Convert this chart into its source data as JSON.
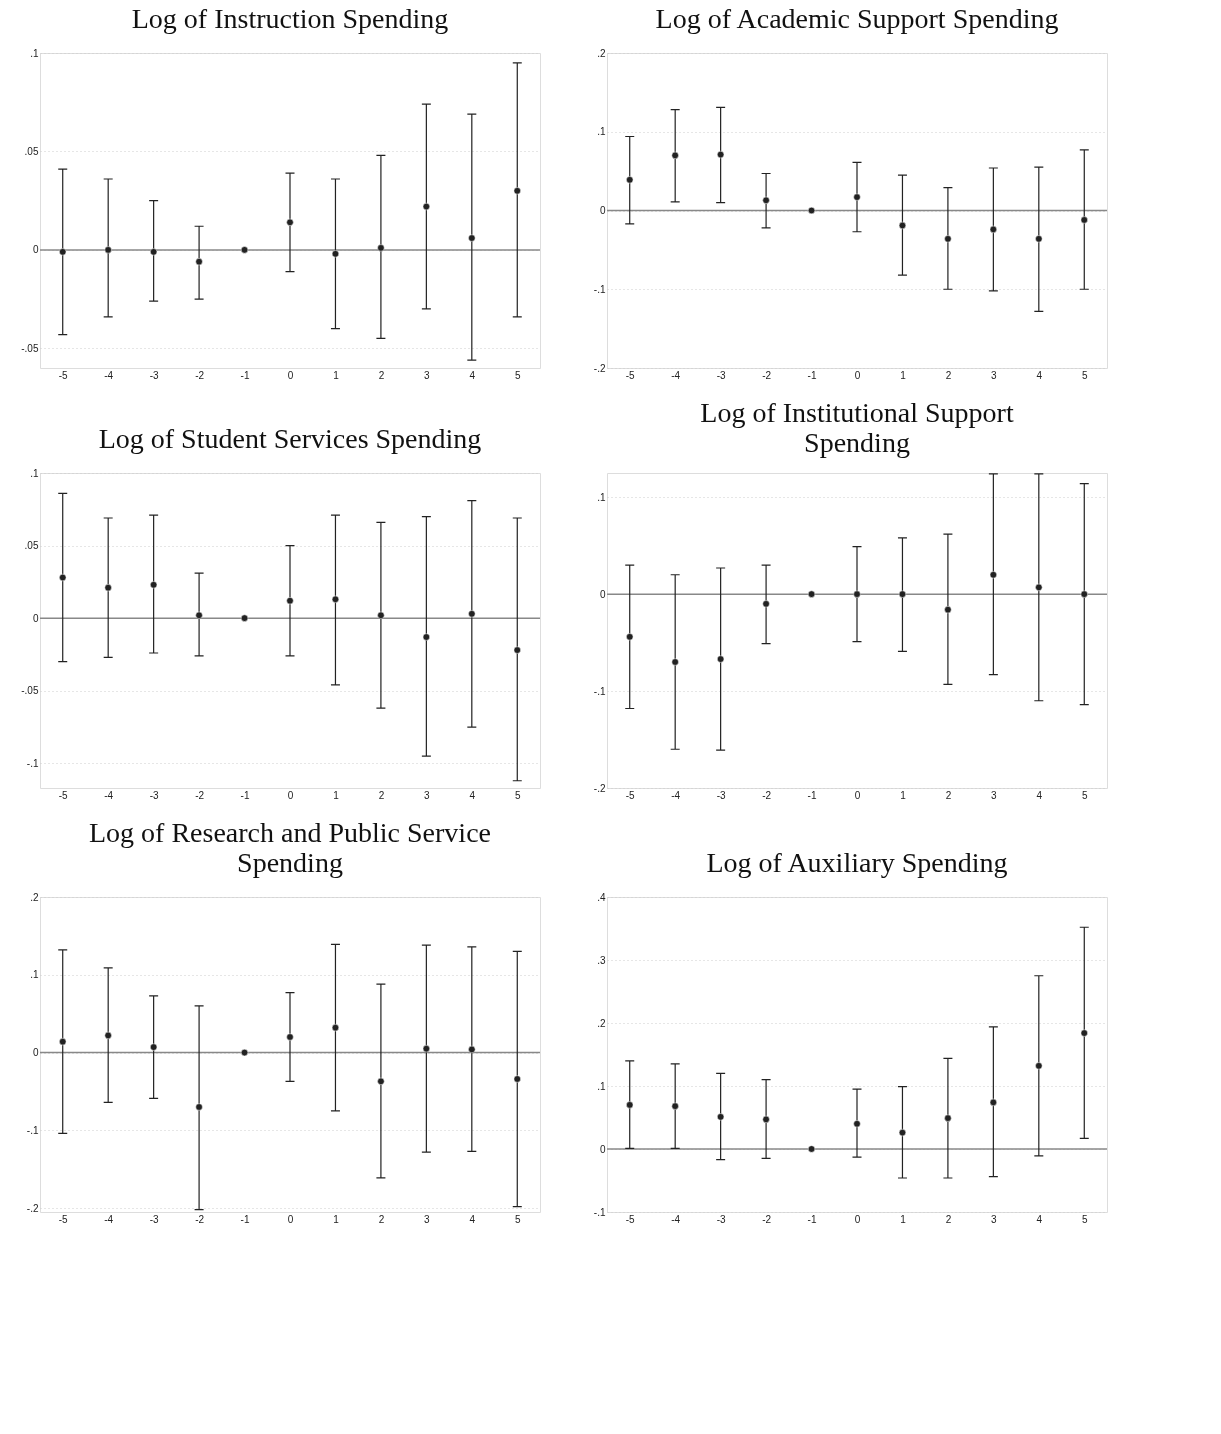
{
  "chart_data": [
    {
      "type": "scatter",
      "title": "Log of Instruction Spending",
      "x": [
        -5,
        -4,
        -3,
        -2,
        -1,
        0,
        1,
        2,
        3,
        4,
        5
      ],
      "marker": "circle",
      "grid": "y",
      "series": [
        {
          "color": "#222222",
          "values": [
            -0.001,
            0,
            -0.001,
            -0.006,
            0,
            0.014,
            -0.002,
            0.001,
            0.022,
            0.006,
            0.03
          ],
          "errors": [
            [
              -0.043,
              0.041
            ],
            [
              -0.034,
              0.036
            ],
            [
              -0.026,
              0.025
            ],
            [
              -0.025,
              0.012
            ],
            null,
            [
              -0.011,
              0.039
            ],
            [
              -0.04,
              0.036
            ],
            [
              -0.045,
              0.048
            ],
            [
              -0.03,
              0.074
            ],
            [
              -0.056,
              0.069
            ],
            [
              -0.034,
              0.095
            ]
          ]
        }
      ],
      "xlim": [
        -5.5,
        5.5
      ],
      "xticks": [
        -5,
        -4,
        -3,
        -2,
        -1,
        0,
        1,
        2,
        3,
        4,
        5
      ],
      "ylim": [
        -0.06,
        0.1
      ],
      "yticks": [
        {
          "value": -0.05,
          "label": "-.05"
        },
        {
          "value": 0,
          "label": "0"
        },
        {
          "value": 0.05,
          "label": ".05"
        },
        {
          "value": 0.1,
          "label": ".1"
        }
      ],
      "ref_lines": [
        {
          "axis": "y",
          "value": 0,
          "color": "#888888"
        }
      ]
    },
    {
      "type": "scatter",
      "title": "Log of Academic Support Spending",
      "x": [
        -5,
        -4,
        -3,
        -2,
        -1,
        0,
        1,
        2,
        3,
        4,
        5
      ],
      "marker": "circle",
      "grid": "y",
      "series": [
        {
          "color": "#222222",
          "values": [
            0.039,
            0.07,
            0.071,
            0.013,
            0,
            0.017,
            -0.019,
            -0.036,
            -0.024,
            -0.036,
            -0.012
          ],
          "errors": [
            [
              -0.017,
              0.094
            ],
            [
              0.011,
              0.128
            ],
            [
              0.01,
              0.131
            ],
            [
              -0.022,
              0.047
            ],
            null,
            [
              -0.027,
              0.061
            ],
            [
              -0.082,
              0.045
            ],
            [
              -0.1,
              0.029
            ],
            [
              -0.102,
              0.054
            ],
            [
              -0.128,
              0.055
            ],
            [
              -0.1,
              0.077
            ]
          ]
        }
      ],
      "xlim": [
        -5.5,
        5.5
      ],
      "xticks": [
        -5,
        -4,
        -3,
        -2,
        -1,
        0,
        1,
        2,
        3,
        4,
        5
      ],
      "ylim": [
        -0.2,
        0.2
      ],
      "yticks": [
        {
          "value": -0.2,
          "label": "-.2"
        },
        {
          "value": -0.1,
          "label": "-.1"
        },
        {
          "value": 0,
          "label": "0"
        },
        {
          "value": 0.1,
          "label": ".1"
        },
        {
          "value": 0.2,
          "label": ".2"
        }
      ],
      "ref_lines": [
        {
          "axis": "y",
          "value": 0,
          "color": "#888888"
        }
      ]
    },
    {
      "type": "scatter",
      "title": "Log of Student Services Spending",
      "x": [
        -5,
        -4,
        -3,
        -2,
        -1,
        0,
        1,
        2,
        3,
        4,
        5
      ],
      "marker": "circle",
      "grid": "y",
      "series": [
        {
          "color": "#222222",
          "values": [
            0.028,
            0.021,
            0.023,
            0.002,
            0,
            0.012,
            0.013,
            0.002,
            -0.013,
            0.003,
            -0.022
          ],
          "errors": [
            [
              -0.03,
              0.086
            ],
            [
              -0.027,
              0.069
            ],
            [
              -0.024,
              0.071
            ],
            [
              -0.026,
              0.031
            ],
            null,
            [
              -0.026,
              0.05
            ],
            [
              -0.046,
              0.071
            ],
            [
              -0.062,
              0.066
            ],
            [
              -0.095,
              0.07
            ],
            [
              -0.075,
              0.081
            ],
            [
              -0.112,
              0.069
            ]
          ]
        }
      ],
      "xlim": [
        -5.5,
        5.5
      ],
      "xticks": [
        -5,
        -4,
        -3,
        -2,
        -1,
        0,
        1,
        2,
        3,
        4,
        5
      ],
      "ylim": [
        -0.117,
        0.1
      ],
      "yticks": [
        {
          "value": -0.1,
          "label": "-.1"
        },
        {
          "value": -0.05,
          "label": "-.05"
        },
        {
          "value": 0,
          "label": "0"
        },
        {
          "value": 0.05,
          "label": ".05"
        },
        {
          "value": 0.1,
          "label": ".1"
        }
      ],
      "ref_lines": [
        {
          "axis": "y",
          "value": 0,
          "color": "#888888"
        }
      ]
    },
    {
      "type": "scatter",
      "title": "Log of Institutional Support Spending",
      "x": [
        -5,
        -4,
        -3,
        -2,
        -1,
        0,
        1,
        2,
        3,
        4,
        5
      ],
      "marker": "circle",
      "grid": "y",
      "series": [
        {
          "color": "#222222",
          "values": [
            -0.044,
            -0.07,
            -0.067,
            -0.01,
            0,
            0,
            0,
            -0.016,
            0.02,
            0.007,
            0
          ],
          "errors": [
            [
              -0.118,
              0.03
            ],
            [
              -0.16,
              0.02
            ],
            [
              -0.161,
              0.027
            ],
            [
              -0.051,
              0.03
            ],
            null,
            [
              -0.049,
              0.049
            ],
            [
              -0.059,
              0.058
            ],
            [
              -0.093,
              0.062
            ],
            [
              -0.083,
              0.124
            ],
            [
              -0.11,
              0.124
            ],
            [
              -0.114,
              0.114
            ]
          ]
        }
      ],
      "xlim": [
        -5.5,
        5.5
      ],
      "xticks": [
        -5,
        -4,
        -3,
        -2,
        -1,
        0,
        1,
        2,
        3,
        4,
        5
      ],
      "ylim": [
        -0.2,
        0.125
      ],
      "yticks": [
        {
          "value": -0.2,
          "label": "-.2"
        },
        {
          "value": -0.1,
          "label": "-.1"
        },
        {
          "value": 0,
          "label": "0"
        },
        {
          "value": 0.1,
          "label": ".1"
        }
      ],
      "ref_lines": [
        {
          "axis": "y",
          "value": 0,
          "color": "#888888"
        }
      ]
    },
    {
      "type": "scatter",
      "title": "Log of Research and Public Service Spending",
      "x": [
        -5,
        -4,
        -3,
        -2,
        -1,
        0,
        1,
        2,
        3,
        4,
        5
      ],
      "marker": "circle",
      "grid": "y",
      "series": [
        {
          "color": "#222222",
          "values": [
            0.014,
            0.022,
            0.007,
            -0.07,
            0,
            0.02,
            0.032,
            -0.037,
            0.005,
            0.004,
            -0.034
          ],
          "errors": [
            [
              -0.104,
              0.132
            ],
            [
              -0.064,
              0.109
            ],
            [
              -0.059,
              0.073
            ],
            [
              -0.202,
              0.06
            ],
            null,
            [
              -0.037,
              0.077
            ],
            [
              -0.075,
              0.139
            ],
            [
              -0.161,
              0.088
            ],
            [
              -0.128,
              0.138
            ],
            [
              -0.127,
              0.136
            ],
            [
              -0.198,
              0.13
            ]
          ]
        }
      ],
      "xlim": [
        -5.5,
        5.5
      ],
      "xticks": [
        -5,
        -4,
        -3,
        -2,
        -1,
        0,
        1,
        2,
        3,
        4,
        5
      ],
      "ylim": [
        -0.205,
        0.2
      ],
      "yticks": [
        {
          "value": -0.2,
          "label": "-.2"
        },
        {
          "value": -0.1,
          "label": "-.1"
        },
        {
          "value": 0,
          "label": "0"
        },
        {
          "value": 0.1,
          "label": ".1"
        },
        {
          "value": 0.2,
          "label": ".2"
        }
      ],
      "ref_lines": [
        {
          "axis": "y",
          "value": 0,
          "color": "#888888"
        }
      ]
    },
    {
      "type": "scatter",
      "title": "Log of Auxiliary Spending",
      "x": [
        -5,
        -4,
        -3,
        -2,
        -1,
        0,
        1,
        2,
        3,
        4,
        5
      ],
      "marker": "circle",
      "grid": "y",
      "series": [
        {
          "color": "#222222",
          "values": [
            0.07,
            0.068,
            0.051,
            0.047,
            0,
            0.04,
            0.026,
            0.049,
            0.074,
            0.132,
            0.184
          ],
          "errors": [
            [
              0.001,
              0.14
            ],
            [
              0.001,
              0.135
            ],
            [
              -0.017,
              0.12
            ],
            [
              -0.015,
              0.11
            ],
            null,
            [
              -0.013,
              0.095
            ],
            [
              -0.046,
              0.099
            ],
            [
              -0.046,
              0.144
            ],
            [
              -0.044,
              0.194
            ],
            [
              -0.011,
              0.275
            ],
            [
              0.017,
              0.352
            ]
          ]
        }
      ],
      "xlim": [
        -5.5,
        5.5
      ],
      "xticks": [
        -5,
        -4,
        -3,
        -2,
        -1,
        0,
        1,
        2,
        3,
        4,
        5
      ],
      "ylim": [
        -0.1,
        0.4
      ],
      "yticks": [
        {
          "value": -0.1,
          "label": "-.1"
        },
        {
          "value": 0,
          "label": "0"
        },
        {
          "value": 0.1,
          "label": ".1"
        },
        {
          "value": 0.2,
          "label": ".2"
        },
        {
          "value": 0.3,
          "label": ".3"
        },
        {
          "value": 0.4,
          "label": ".4"
        }
      ],
      "ref_lines": [
        {
          "axis": "y",
          "value": 0,
          "color": "#888888"
        }
      ]
    }
  ]
}
